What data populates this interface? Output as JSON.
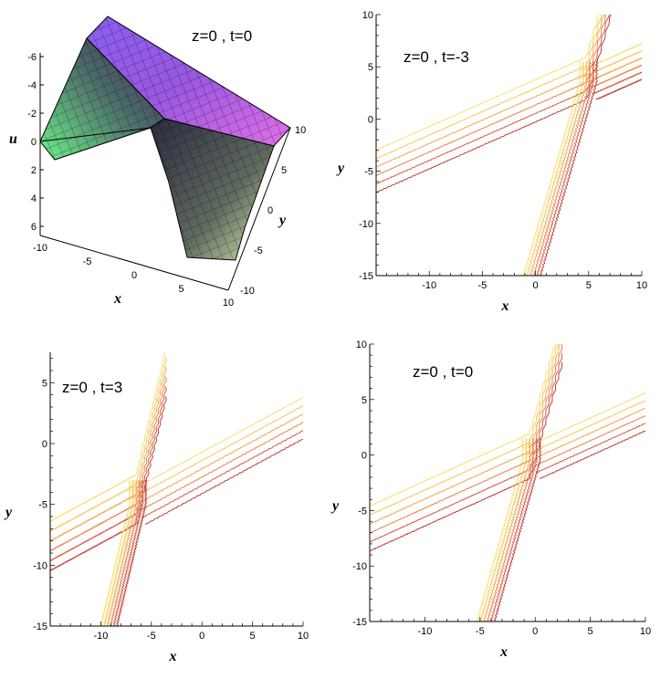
{
  "chart_data": [
    {
      "id": "surface",
      "type": "surface3d",
      "title": "z=0 , t=0",
      "xlabel": "x",
      "ylabel": "y",
      "zlabel": "u",
      "x_ticks": [
        "-10",
        "-5",
        "0",
        "5",
        "10"
      ],
      "y_ticks": [
        "-10",
        "-5",
        "0",
        "5",
        "10"
      ],
      "u_ticks": [
        "-6",
        "-4",
        "-2",
        "0",
        "2",
        "4",
        "6"
      ],
      "colors": [
        "#5fe07a",
        "#4b4f6e",
        "#7a3fd0",
        "#e070e8"
      ]
    },
    {
      "id": "contour1",
      "type": "contour",
      "title": "z=0 , t=-3",
      "xlabel": "x",
      "ylabel": "y",
      "xlim": [
        -15,
        10
      ],
      "ylim": [
        -15,
        10
      ],
      "x_ticks": [
        "-10",
        "-5",
        "0",
        "5",
        "10"
      ],
      "y_ticks": [
        "10",
        "5",
        "0",
        "-5",
        "-10",
        "-15"
      ],
      "x_tick_values": [
        -10,
        -5,
        0,
        5,
        10
      ],
      "y_tick_values": [
        10,
        5,
        0,
        -5,
        -10,
        -15
      ],
      "center": [
        4.8,
        3.5
      ],
      "shallow_slope": 0.45,
      "steep_slope": 3.5,
      "colors": [
        "#c03c3c",
        "#d75a44",
        "#e8844a",
        "#f0a850",
        "#f5c85a",
        "#f8e070"
      ]
    },
    {
      "id": "contour2",
      "type": "contour",
      "title": "z=0 , t=3",
      "xlabel": "x",
      "ylabel": "y",
      "xlim": [
        -15,
        10
      ],
      "ylim": [
        -15,
        7.5
      ],
      "x_ticks": [
        "-10",
        "-5",
        "0",
        "5",
        "10"
      ],
      "y_ticks": [
        "5",
        "0",
        "-5",
        "-10",
        "-15"
      ],
      "x_tick_values": [
        -10,
        -5,
        0,
        5,
        10
      ],
      "y_tick_values": [
        5,
        0,
        -5,
        -10,
        -15
      ],
      "center": [
        -6.5,
        -5
      ],
      "shallow_slope": 0.45,
      "steep_slope": 3.5,
      "colors": [
        "#c03c3c",
        "#d75a44",
        "#e8844a",
        "#f0a850",
        "#f5c85a",
        "#f8e070"
      ]
    },
    {
      "id": "contour3",
      "type": "contour",
      "title": "z=0 , t=0",
      "xlabel": "x",
      "ylabel": "y",
      "xlim": [
        -15,
        10
      ],
      "ylim": [
        -15,
        10
      ],
      "x_ticks": [
        "-10",
        "-5",
        "0",
        "5",
        "10"
      ],
      "y_ticks": [
        "10",
        "5",
        "0",
        "-5",
        "-10",
        "-15"
      ],
      "x_tick_values": [
        -10,
        -5,
        0,
        5,
        10
      ],
      "y_tick_values": [
        10,
        5,
        0,
        -5,
        -10,
        -15
      ],
      "center": [
        -0.5,
        -0.5
      ],
      "shallow_slope": 0.45,
      "steep_slope": 3.5,
      "colors": [
        "#c03c3c",
        "#d75a44",
        "#e8844a",
        "#f0a850",
        "#f5c85a",
        "#f8e070"
      ]
    }
  ]
}
